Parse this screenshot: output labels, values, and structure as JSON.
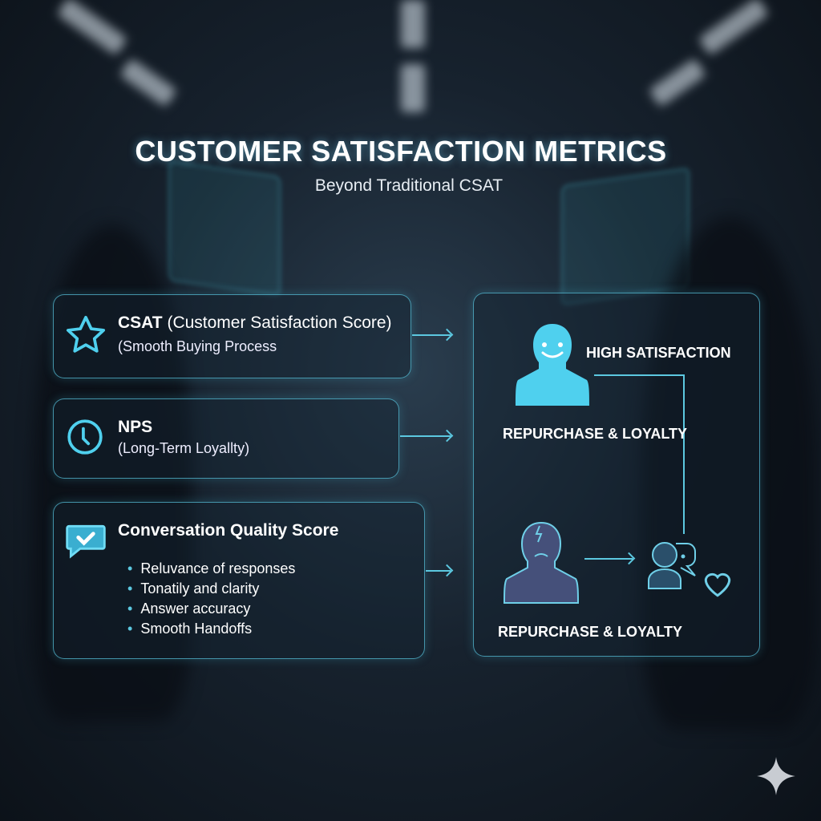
{
  "header": {
    "title": "CUSTOMER SATISFACTION METRICS",
    "subtitle": "Beyond Traditional CSAT"
  },
  "metrics": [
    {
      "icon": "star-icon",
      "title": "CSAT",
      "title_suffix": "(Customer Satisfaction Score)",
      "subtitle": "(Smooth Buying Process"
    },
    {
      "icon": "clock-icon",
      "title": "NPS",
      "subtitle": "(Long-Term Loyallty)"
    },
    {
      "icon": "chat-check-icon",
      "title": "Conversation Quality Score",
      "bullets": [
        "Reluvance of responses",
        "Tonatily and clarity",
        "Answer accuracy",
        "Smooth Handoffs"
      ]
    }
  ],
  "outcomes": {
    "high": "HIGH SATISFACTION",
    "mid": "REPURCHASE & LOYALTY",
    "bottom": "REPURCHASE & LOYALTY"
  },
  "colors": {
    "accent": "#5cc8e0",
    "icon_fill": "#4fd0ee"
  }
}
